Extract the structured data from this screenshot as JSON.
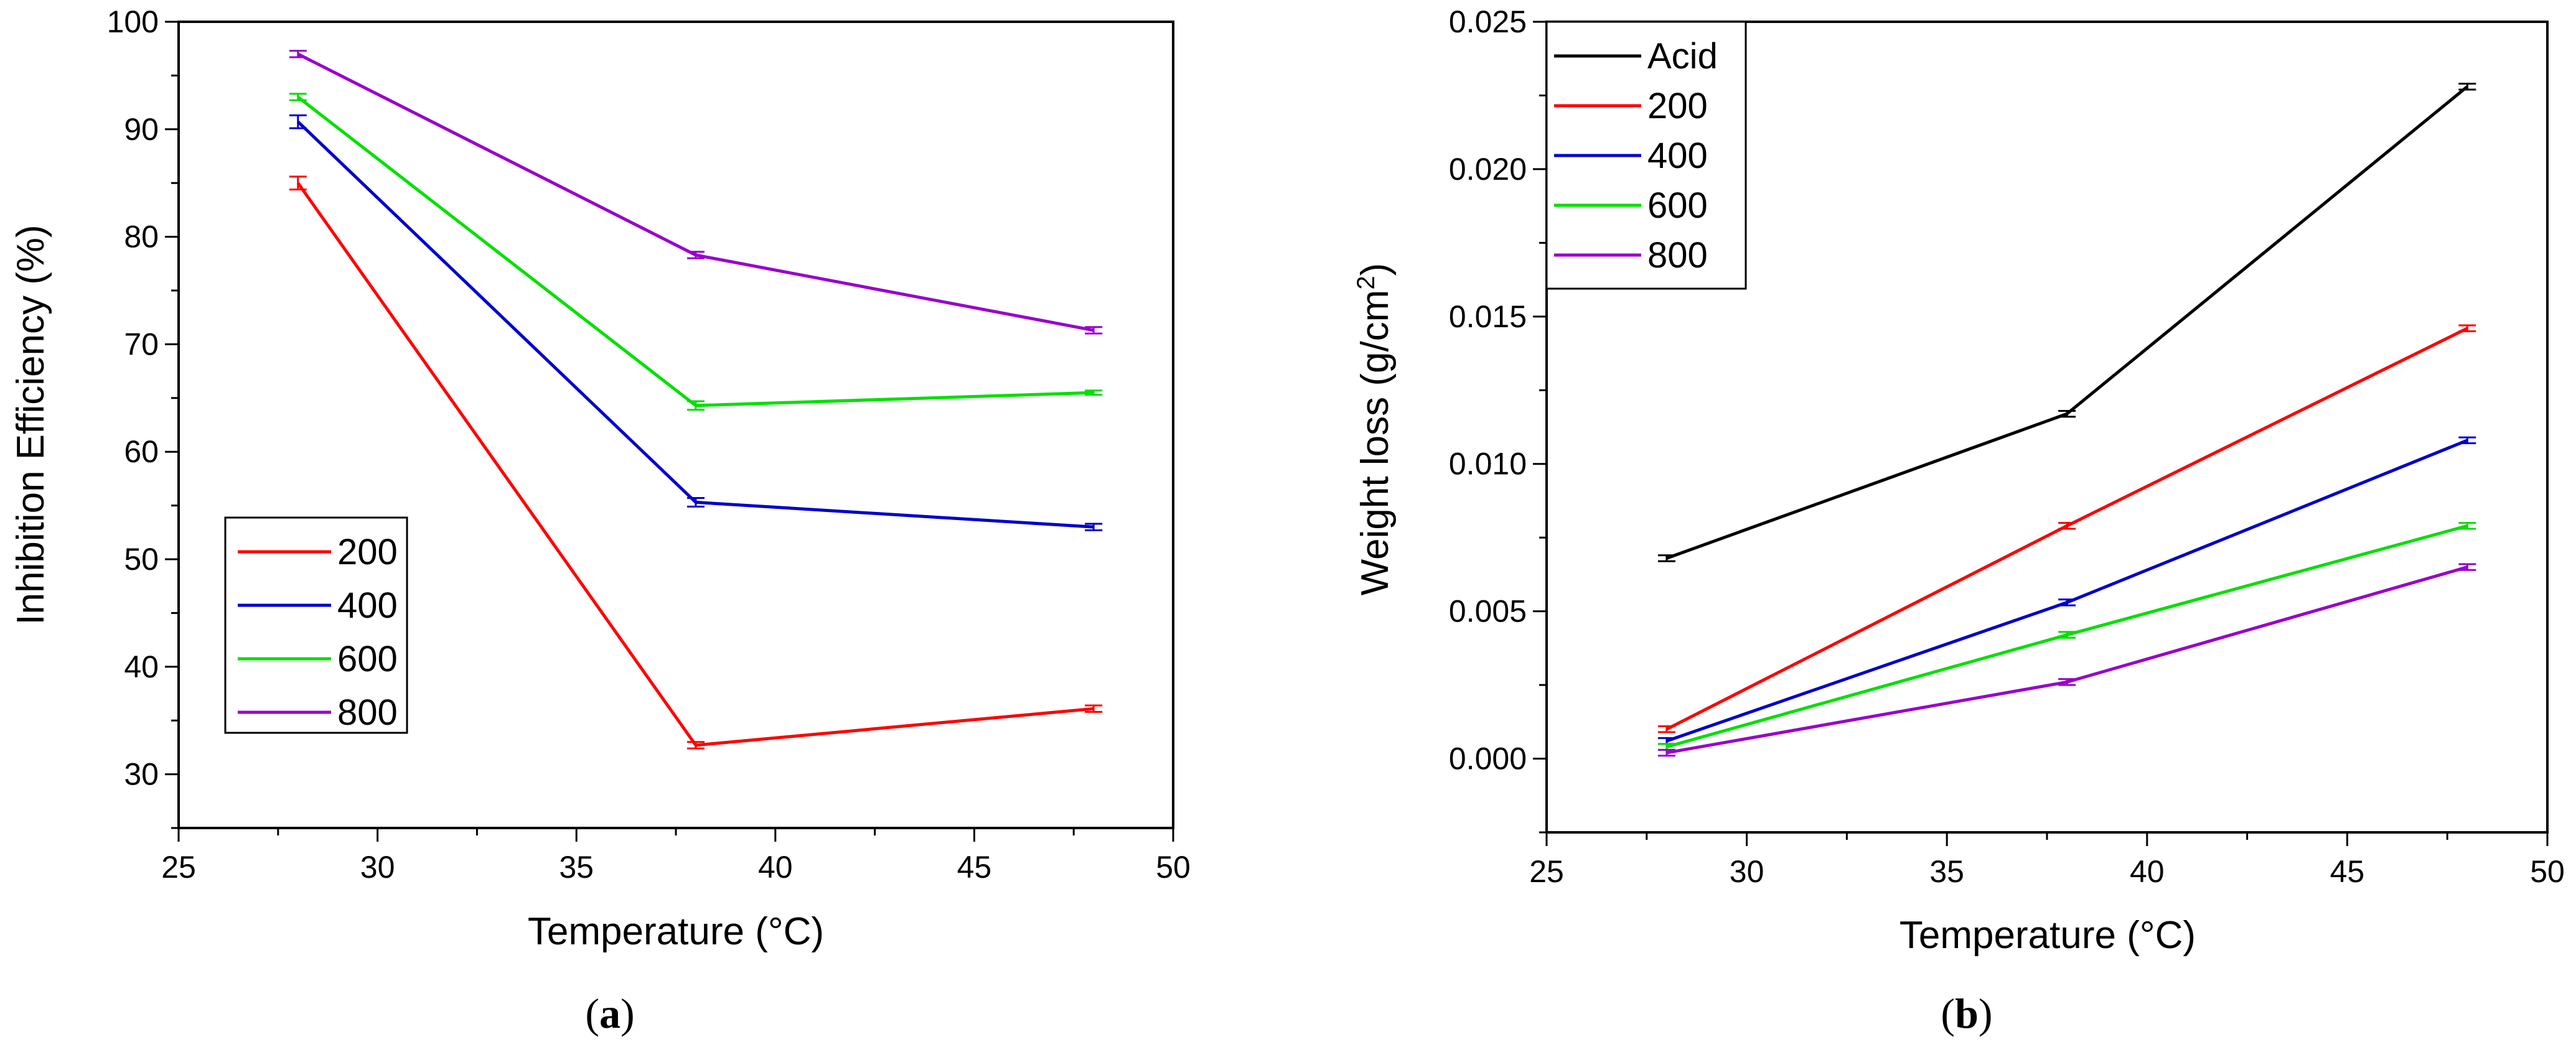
{
  "chart_data": [
    {
      "panel": "a",
      "type": "line",
      "caption": {
        "open": "(",
        "letter": "a",
        "close": ")"
      },
      "xlabel": "Temperature (°C)",
      "ylabel": "Inhibition Efficiency (%)",
      "xlim": [
        25,
        50
      ],
      "ylim": [
        25,
        100
      ],
      "xticks": [
        25,
        30,
        35,
        40,
        45,
        50
      ],
      "yticks": [
        30,
        40,
        50,
        60,
        70,
        80,
        90,
        100
      ],
      "legend_position": "bottom-left",
      "x": [
        28,
        38,
        48
      ],
      "series": [
        {
          "name": "200",
          "color": "#ff0000",
          "values": [
            85.0,
            32.7,
            36.1
          ],
          "errors": [
            0.6,
            0.3,
            0.3
          ]
        },
        {
          "name": "400",
          "color": "#0000cc",
          "values": [
            90.7,
            55.3,
            53.0
          ],
          "errors": [
            0.6,
            0.4,
            0.3
          ]
        },
        {
          "name": "600",
          "color": "#00e000",
          "values": [
            93.0,
            64.3,
            65.5
          ],
          "errors": [
            0.3,
            0.4,
            0.2
          ]
        },
        {
          "name": "800",
          "color": "#9900cc",
          "values": [
            97.0,
            78.3,
            71.3
          ],
          "errors": [
            0.3,
            0.3,
            0.3
          ]
        }
      ]
    },
    {
      "panel": "b",
      "type": "line",
      "caption": {
        "open": "(",
        "letter": "b",
        "close": ")"
      },
      "xlabel": "Temperature (°C)",
      "ylabel": "Weight loss (g/cm",
      "ylabel_sup": "2",
      "ylabel_end": ")",
      "xlim": [
        25,
        50
      ],
      "ylim": [
        -0.0025,
        0.025
      ],
      "xticks": [
        25,
        30,
        35,
        40,
        45,
        50
      ],
      "yticks": [
        0.0,
        0.005,
        0.01,
        0.015,
        0.02,
        0.025
      ],
      "ytick_labels": [
        "0.000",
        "0.005",
        "0.010",
        "0.015",
        "0.020",
        "0.025"
      ],
      "legend_position": "top-left",
      "x": [
        28,
        38,
        48
      ],
      "series": [
        {
          "name": "Acid",
          "color": "#000000",
          "values": [
            0.0068,
            0.0117,
            0.0228
          ],
          "errors": [
            0.0001,
            0.0001,
            0.0001
          ]
        },
        {
          "name": "200",
          "color": "#ff0000",
          "values": [
            0.001,
            0.0079,
            0.0146
          ],
          "errors": [
            0.0001,
            0.0001,
            0.0001
          ]
        },
        {
          "name": "400",
          "color": "#0000cc",
          "values": [
            0.0006,
            0.0053,
            0.0108
          ],
          "errors": [
            0.0001,
            0.0001,
            0.0001
          ]
        },
        {
          "name": "600",
          "color": "#00e000",
          "values": [
            0.0004,
            0.0042,
            0.0079
          ],
          "errors": [
            0.0001,
            0.0001,
            0.0001
          ]
        },
        {
          "name": "800",
          "color": "#9900cc",
          "values": [
            0.0002,
            0.0026,
            0.0065
          ],
          "errors": [
            0.0001,
            0.0001,
            0.0001
          ]
        }
      ]
    }
  ]
}
